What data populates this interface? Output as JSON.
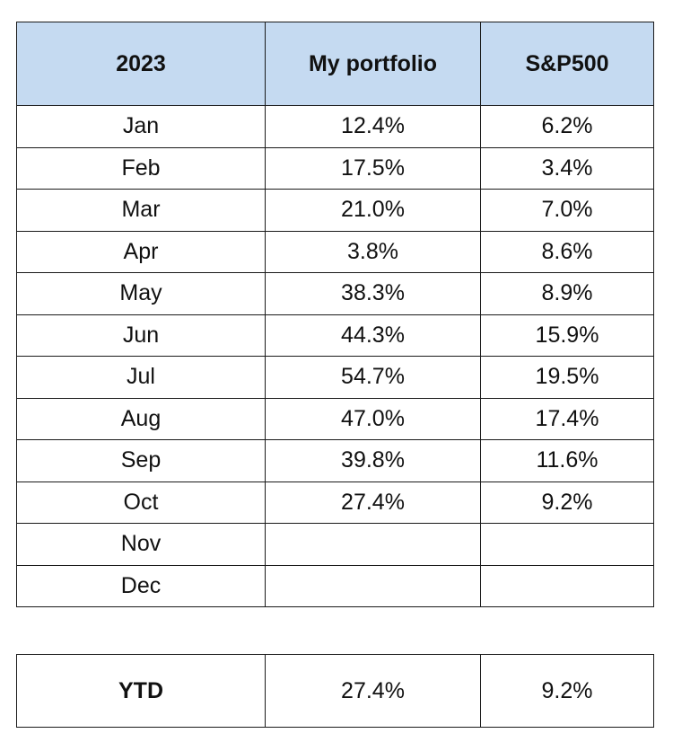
{
  "table": {
    "headers": [
      "2023",
      "My portfolio",
      "S&P500"
    ],
    "rows": [
      {
        "month": "Jan",
        "portfolio": "12.4%",
        "sp500": "6.2%"
      },
      {
        "month": "Feb",
        "portfolio": "17.5%",
        "sp500": "3.4%"
      },
      {
        "month": "Mar",
        "portfolio": "21.0%",
        "sp500": "7.0%"
      },
      {
        "month": "Apr",
        "portfolio": "3.8%",
        "sp500": "8.6%"
      },
      {
        "month": "May",
        "portfolio": "38.3%",
        "sp500": "8.9%"
      },
      {
        "month": "Jun",
        "portfolio": "44.3%",
        "sp500": "15.9%"
      },
      {
        "month": "Jul",
        "portfolio": "54.7%",
        "sp500": "19.5%"
      },
      {
        "month": "Aug",
        "portfolio": "47.0%",
        "sp500": "17.4%"
      },
      {
        "month": "Sep",
        "portfolio": "39.8%",
        "sp500": "11.6%"
      },
      {
        "month": "Oct",
        "portfolio": "27.4%",
        "sp500": "9.2%"
      },
      {
        "month": "Nov",
        "portfolio": "",
        "sp500": ""
      },
      {
        "month": "Dec",
        "portfolio": "",
        "sp500": ""
      }
    ]
  },
  "ytd": {
    "label": "YTD",
    "portfolio": "27.4%",
    "sp500": "9.2%"
  },
  "colors": {
    "header_background": "#c5daf1",
    "border": "#1a1a1a"
  }
}
